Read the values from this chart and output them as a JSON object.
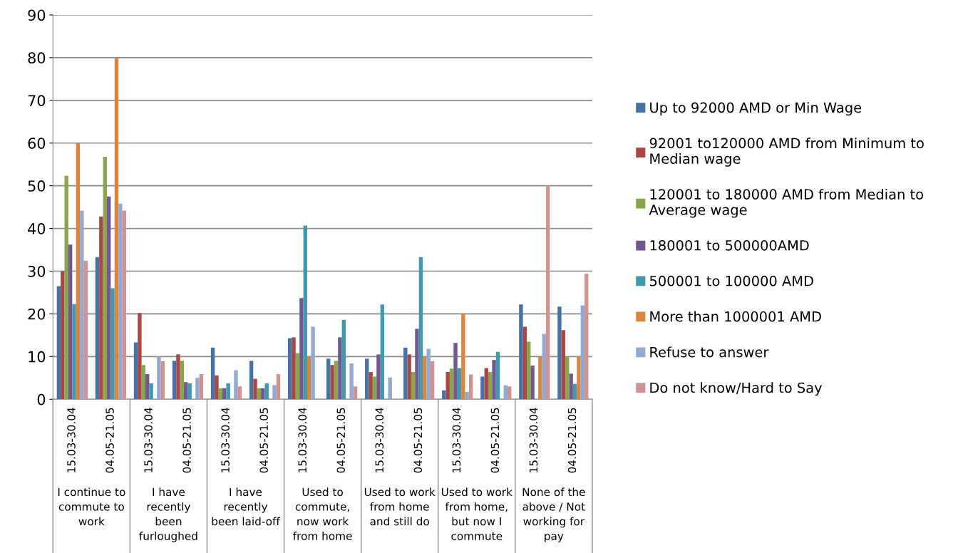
{
  "chart_data": {
    "type": "bar",
    "categories": [
      "15.03-30.04",
      "04.05-21.05",
      "15.03-30.04",
      "04.05-21.05",
      "15.03-30.04",
      "04.05-21.05",
      "15.03-30.04",
      "04.05-21.05",
      "15.03-30.04",
      "04.05-21.05",
      "15.03-30.04",
      "04.05-21.05",
      "15.03-30.04",
      "04.05-21.05"
    ],
    "annotations": [
      "I continue to commute to work",
      "I have recently been furloughed",
      "I have recently been laid-off",
      "Used to commute, now work from home",
      "Used to work from home and still do",
      "Used to work from home, but now I commute",
      "None of the above / Not working for pay"
    ],
    "series": [
      {
        "name": "Up to 92000 AMD or Min Wage",
        "color": "#4572a7",
        "values": [
          26.5,
          33.3,
          13.3,
          9,
          12.1,
          9,
          14.3,
          9.5,
          9.5,
          12.1,
          2.1,
          5.3,
          22.2,
          21.7
        ]
      },
      {
        "name": "92001 to120000 AMD from Minimum to Median wage",
        "color": "#aa4643",
        "values": [
          30,
          42.8,
          20.2,
          10.5,
          5.6,
          4.8,
          14.5,
          8,
          6.4,
          10.5,
          6.4,
          7.3,
          17,
          16.2
        ]
      },
      {
        "name": "120001 to 180000 AMD from Median to Average wage",
        "color": "#89a54e",
        "values": [
          52.3,
          56.8,
          8,
          9,
          2.6,
          2.6,
          10.8,
          9,
          5.3,
          6.4,
          7.2,
          6.4,
          13.5,
          10
        ]
      },
      {
        "name": "180001 to 500000AMD",
        "color": "#71588f",
        "values": [
          36.2,
          47.5,
          5.9,
          4,
          2.6,
          2.6,
          23.7,
          14.5,
          10.5,
          16.5,
          13.2,
          9.2,
          7.9,
          6
        ]
      },
      {
        "name": "500001 to 100000 AMD",
        "color": "#4198af",
        "values": [
          22.3,
          26,
          3.7,
          3.7,
          3.7,
          3.7,
          40.7,
          18.6,
          22.2,
          33.3,
          7.3,
          11.1,
          0,
          3.6
        ]
      },
      {
        "name": "More than 1000001 AMD",
        "color": "#db843d",
        "values": [
          60,
          80,
          0,
          0,
          0,
          0,
          10,
          0,
          0,
          10,
          20,
          0,
          10,
          10
        ]
      },
      {
        "name": "Refuse to answer",
        "color": "#93a9cf",
        "values": [
          44.2,
          45.8,
          10,
          5,
          6.8,
          3.3,
          17,
          8.4,
          5.1,
          11.8,
          1.7,
          3.3,
          15.3,
          22
        ]
      },
      {
        "name": "Do not know/Hard to Say",
        "color": "#d19392",
        "values": [
          32.4,
          44.2,
          8.9,
          5.9,
          3,
          5.9,
          0,
          3,
          0,
          8.9,
          5.8,
          3,
          50,
          29.4
        ]
      }
    ],
    "ylim": [
      0,
      90
    ],
    "yticks": [
      0,
      10,
      20,
      30,
      40,
      50,
      60,
      70,
      80,
      90
    ],
    "grid": "y",
    "legend": "right"
  }
}
